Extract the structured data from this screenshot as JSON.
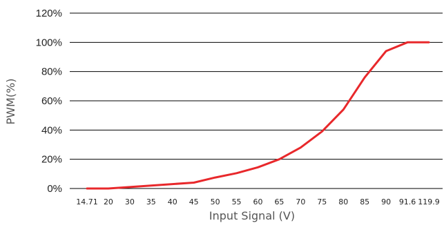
{
  "chart_data": {
    "type": "line",
    "xlabel": "Input Signal (V)",
    "ylabel": "PWM(%)",
    "categories": [
      "14.71",
      "20",
      "30",
      "35",
      "40",
      "45",
      "50",
      "55",
      "60",
      "65",
      "70",
      "75",
      "80",
      "85",
      "90",
      "91.6",
      "119.9"
    ],
    "y_ticks": [
      "0%",
      "20%",
      "40%",
      "60%",
      "80%",
      "100%",
      "120%"
    ],
    "ylim": [
      0,
      120
    ],
    "grid": "horizontal",
    "series": [
      {
        "values": [
          0,
          0,
          1,
          2,
          3,
          4,
          7.5,
          10.5,
          14.5,
          20,
          28,
          39,
          54,
          76,
          94,
          100,
          100
        ]
      }
    ],
    "colors": {
      "line": "#e8282b",
      "grid": "#000000"
    }
  }
}
